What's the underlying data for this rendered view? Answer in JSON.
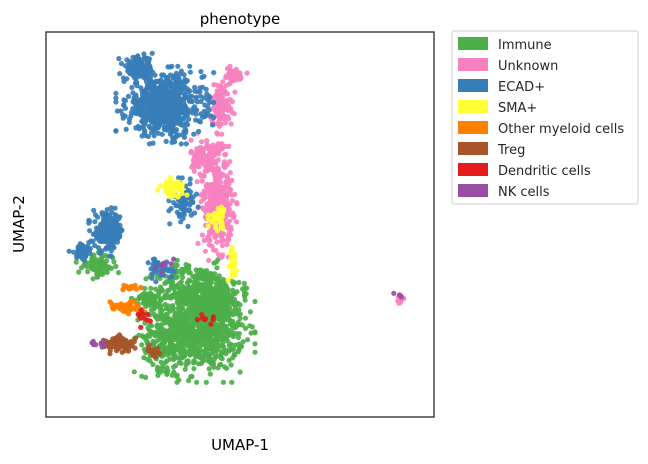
{
  "chart_data": {
    "type": "scatter",
    "title": "phenotype",
    "xlabel": "UMAP-1",
    "ylabel": "UMAP-2",
    "xticks": [],
    "yticks": [],
    "grid": false,
    "legend_placement": "outside-upper-right",
    "categories": [
      {
        "name": "Immune",
        "color": "#4daf4a"
      },
      {
        "name": "Unknown",
        "color": "#f781bf"
      },
      {
        "name": "ECAD+",
        "color": "#377eb8"
      },
      {
        "name": "SMA+",
        "color": "#ffff33"
      },
      {
        "name": "Other myeloid cells",
        "color": "#ff7f00"
      },
      {
        "name": "Treg",
        "color": "#a65628"
      },
      {
        "name": "Dendritic cells",
        "color": "#e41a1c"
      },
      {
        "name": "NK cells",
        "color": "#984ea3"
      }
    ],
    "xlim": [
      0,
      100
    ],
    "ylim": [
      0,
      100
    ],
    "clusters": [
      {
        "name": "Immune",
        "cx": 41,
        "cy": 22,
        "rx": 10,
        "ry": 11,
        "n": 700
      },
      {
        "name": "Immune",
        "cx": 39,
        "cy": 32,
        "rx": 11,
        "ry": 7,
        "n": 400
      },
      {
        "name": "Immune",
        "cx": 31,
        "cy": 20,
        "rx": 7,
        "ry": 9,
        "n": 250
      },
      {
        "name": "Immune",
        "cx": 12,
        "cy": 39,
        "rx": 5,
        "ry": 3,
        "n": 80
      },
      {
        "name": "Immune",
        "cx": 26,
        "cy": 30,
        "rx": 4,
        "ry": 4,
        "n": 60
      },
      {
        "name": "Unknown",
        "cx": 44,
        "cy": 56,
        "rx": 4,
        "ry": 12,
        "n": 350
      },
      {
        "name": "Unknown",
        "cx": 41,
        "cy": 68,
        "rx": 4,
        "ry": 5,
        "n": 120
      },
      {
        "name": "Unknown",
        "cx": 45,
        "cy": 82,
        "rx": 3,
        "ry": 6,
        "n": 120
      },
      {
        "name": "Unknown",
        "cx": 48,
        "cy": 90,
        "rx": 3,
        "ry": 2,
        "n": 50
      },
      {
        "name": "Unknown",
        "cx": 93,
        "cy": 30,
        "rx": 1,
        "ry": 1,
        "n": 12
      },
      {
        "name": "ECAD+",
        "cx": 30,
        "cy": 82,
        "rx": 10,
        "ry": 8,
        "n": 700
      },
      {
        "name": "ECAD+",
        "cx": 23,
        "cy": 92,
        "rx": 4,
        "ry": 3,
        "n": 120
      },
      {
        "name": "ECAD+",
        "cx": 15,
        "cy": 48,
        "rx": 4,
        "ry": 5,
        "n": 180
      },
      {
        "name": "ECAD+",
        "cx": 8,
        "cy": 43,
        "rx": 3,
        "ry": 2,
        "n": 40
      },
      {
        "name": "ECAD+",
        "cx": 35,
        "cy": 56,
        "rx": 3,
        "ry": 5,
        "n": 70
      },
      {
        "name": "ECAD+",
        "cx": 29,
        "cy": 38,
        "rx": 3,
        "ry": 3,
        "n": 40
      },
      {
        "name": "SMA+",
        "cx": 32,
        "cy": 60,
        "rx": 3,
        "ry": 2,
        "n": 70
      },
      {
        "name": "SMA+",
        "cx": 44,
        "cy": 52,
        "rx": 2,
        "ry": 3,
        "n": 40
      },
      {
        "name": "SMA+",
        "cx": 48,
        "cy": 40,
        "rx": 1,
        "ry": 4,
        "n": 30
      },
      {
        "name": "Other myeloid cells",
        "cx": 19,
        "cy": 28,
        "rx": 4,
        "ry": 1.5,
        "n": 60
      },
      {
        "name": "Other myeloid cells",
        "cx": 21,
        "cy": 33,
        "rx": 2,
        "ry": 1,
        "n": 15
      },
      {
        "name": "Treg",
        "cx": 18,
        "cy": 18,
        "rx": 4,
        "ry": 2,
        "n": 90
      },
      {
        "name": "Treg",
        "cx": 27,
        "cy": 16,
        "rx": 2,
        "ry": 2,
        "n": 20
      },
      {
        "name": "Dendritic cells",
        "cx": 25,
        "cy": 25,
        "rx": 2,
        "ry": 2,
        "n": 10
      },
      {
        "name": "Dendritic cells",
        "cx": 41,
        "cy": 25,
        "rx": 2,
        "ry": 2,
        "n": 8
      },
      {
        "name": "NK cells",
        "cx": 92,
        "cy": 31,
        "rx": 1,
        "ry": 1,
        "n": 3
      },
      {
        "name": "NK cells",
        "cx": 12,
        "cy": 18,
        "rx": 2,
        "ry": 1,
        "n": 8
      },
      {
        "name": "NK cells",
        "cx": 30,
        "cy": 39,
        "rx": 3,
        "ry": 2,
        "n": 8
      }
    ]
  }
}
